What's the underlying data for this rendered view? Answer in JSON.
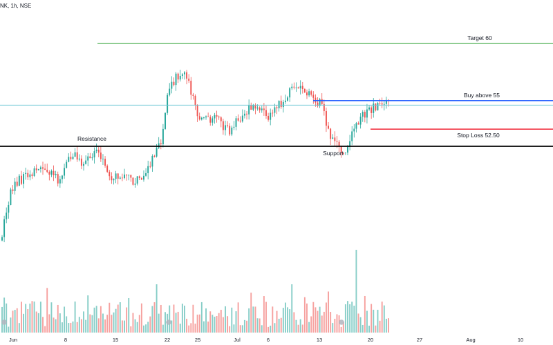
{
  "header": {
    "symbol_label": "NK, 1h, NSE"
  },
  "colors": {
    "up": "#26a69a",
    "down": "#ef5350",
    "target": "#4caf50",
    "buy": "#2962ff",
    "stop": "#f23645",
    "level": "#000000",
    "price_line": "#6fc7d6",
    "axis_text": "#131722"
  },
  "chart_data": {
    "type": "candlestick",
    "x_tick_labels": [
      "Jun",
      "8",
      "15",
      "22",
      "25",
      "Jul",
      "6",
      "13",
      "20",
      "27",
      "Aug",
      "10"
    ],
    "ylim": [
      42,
      64
    ],
    "levels": [
      {
        "label": "Target 60",
        "value": 60
      },
      {
        "label": "Buy above 55",
        "value": 55
      },
      {
        "label": "Stop Loss 52.50",
        "value": 52.5
      },
      {
        "label": "Resistance",
        "value": 51
      },
      {
        "label": "Support",
        "value": 51
      }
    ],
    "current_price": 54.6,
    "price_path_description": "",
    "price_anchors": [
      {
        "i": 0,
        "p": 43.5
      },
      {
        "i": 4,
        "p": 47.0
      },
      {
        "i": 8,
        "p": 48.0
      },
      {
        "i": 14,
        "p": 48.8
      },
      {
        "i": 20,
        "p": 49.2
      },
      {
        "i": 26,
        "p": 48.0
      },
      {
        "i": 32,
        "p": 50.3
      },
      {
        "i": 38,
        "p": 49.6
      },
      {
        "i": 44,
        "p": 50.6
      },
      {
        "i": 50,
        "p": 48.4
      },
      {
        "i": 56,
        "p": 48.4
      },
      {
        "i": 62,
        "p": 48.0
      },
      {
        "i": 68,
        "p": 49.0
      },
      {
        "i": 74,
        "p": 51.3
      },
      {
        "i": 78,
        "p": 56.4
      },
      {
        "i": 85,
        "p": 57.8
      },
      {
        "i": 92,
        "p": 53.4
      },
      {
        "i": 100,
        "p": 53.5
      },
      {
        "i": 106,
        "p": 52.2
      },
      {
        "i": 112,
        "p": 53.9
      },
      {
        "i": 118,
        "p": 54.5
      },
      {
        "i": 124,
        "p": 53.6
      },
      {
        "i": 130,
        "p": 54.8
      },
      {
        "i": 136,
        "p": 56.4
      },
      {
        "i": 142,
        "p": 55.6
      },
      {
        "i": 148,
        "p": 54.8
      },
      {
        "i": 154,
        "p": 51.5
      },
      {
        "i": 160,
        "p": 50.5
      },
      {
        "i": 166,
        "p": 53.3
      },
      {
        "i": 172,
        "p": 54.2
      },
      {
        "i": 178,
        "p": 54.8
      },
      {
        "i": 180,
        "p": 54.8
      }
    ],
    "bars": 181
  }
}
